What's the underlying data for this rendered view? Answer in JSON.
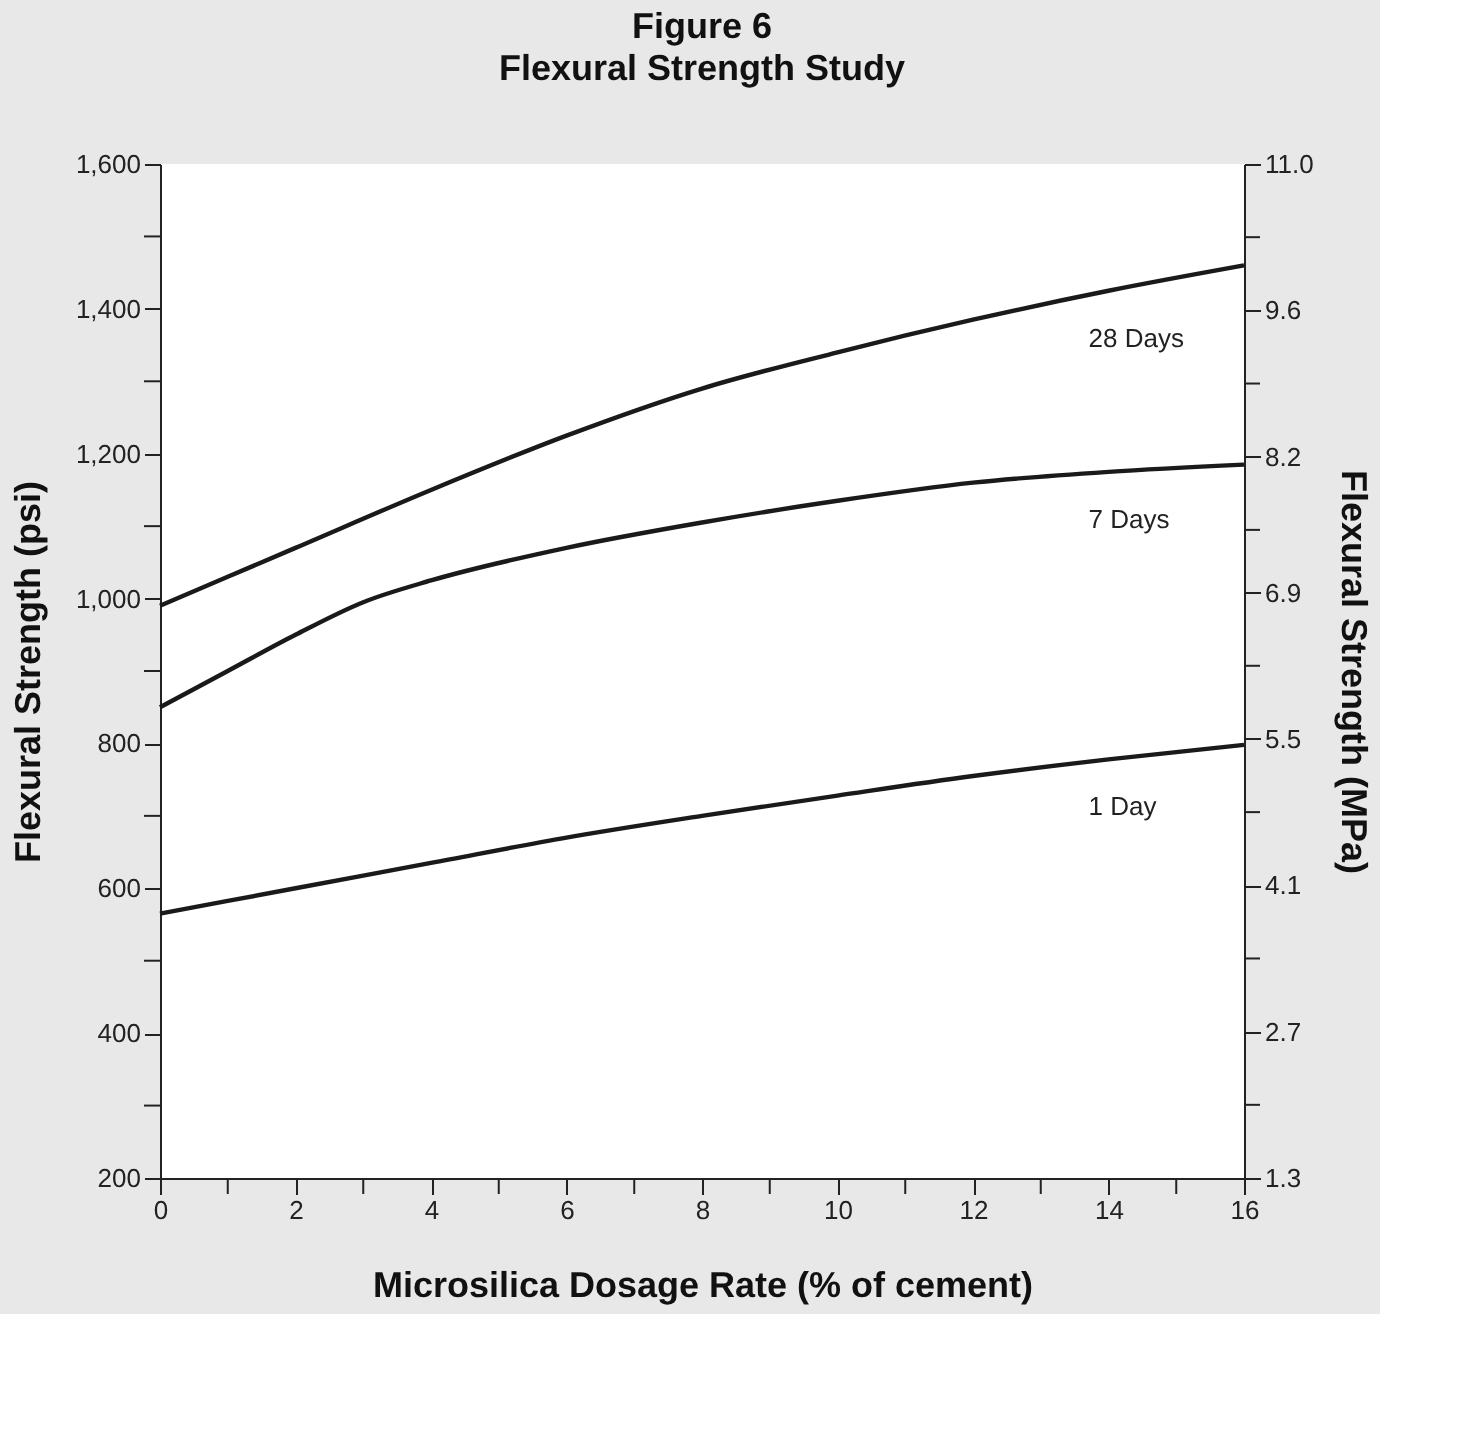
{
  "chart_data": {
    "type": "line",
    "title": "Figure 6",
    "subtitle": "Flexural Strength Study",
    "xlabel": "Microsilica Dosage Rate (% of cement)",
    "ylabel": "Flexural Strength (psi)",
    "y2label": "Flexural Strength (MPa)",
    "x": [
      0,
      2,
      4,
      6,
      8,
      10,
      12,
      14,
      16
    ],
    "series": [
      {
        "name": "28 Days",
        "color": "#1a1a1a",
        "values": [
          990,
          1070,
          1150,
          1225,
          1290,
          1340,
          1385,
          1425,
          1460
        ]
      },
      {
        "name": "7 Days",
        "color": "#1a1a1a",
        "x": [
          0,
          1,
          2,
          3,
          4,
          6,
          8,
          10,
          12,
          14,
          16
        ],
        "values": [
          850,
          900,
          950,
          995,
          1025,
          1070,
          1105,
          1135,
          1160,
          1175,
          1185
        ]
      },
      {
        "name": "1 Day",
        "color": "#1a1a1a",
        "values": [
          565,
          600,
          635,
          670,
          700,
          728,
          755,
          778,
          798
        ]
      }
    ],
    "xlim": [
      0,
      16
    ],
    "xticks": [
      0,
      {
        "value": 1,
        "label": null
      },
      2,
      {
        "value": 3,
        "label": null
      },
      4,
      {
        "value": 5,
        "label": null
      },
      6,
      {
        "value": 7,
        "label": null
      },
      8,
      {
        "value": 9,
        "label": null
      },
      10,
      {
        "value": 11,
        "label": null
      },
      12,
      {
        "value": 13,
        "label": null
      },
      14,
      {
        "value": 15,
        "label": null
      },
      16
    ],
    "ylim": [
      200,
      1600
    ],
    "yticks": [
      {
        "value": 200,
        "label": "200"
      },
      {
        "value": 300,
        "label": null
      },
      {
        "value": 400,
        "label": "400"
      },
      {
        "value": 500,
        "label": null
      },
      {
        "value": 600,
        "label": "600"
      },
      {
        "value": 700,
        "label": null
      },
      {
        "value": 800,
        "label": "800"
      },
      {
        "value": 900,
        "label": null
      },
      {
        "value": 1000,
        "label": "1,000"
      },
      {
        "value": 1100,
        "label": null
      },
      {
        "value": 1200,
        "label": "1,200"
      },
      {
        "value": 1300,
        "label": null
      },
      {
        "value": 1400,
        "label": "1,400"
      },
      {
        "value": 1500,
        "label": null
      },
      {
        "value": 1600,
        "label": "1,600"
      }
    ],
    "y2lim": [
      1.3,
      11.0
    ],
    "y2ticks": [
      1.3,
      {
        "value": 2.0,
        "label": null
      },
      2.7,
      {
        "value": 3.4,
        "label": null
      },
      4.1,
      {
        "value": 4.8,
        "label": null
      },
      5.5,
      {
        "value": 6.2,
        "label": null
      },
      6.9,
      {
        "value": 7.5,
        "label": null
      },
      8.2,
      {
        "value": 8.9,
        "label": null
      },
      9.6,
      {
        "value": 10.3,
        "label": null
      },
      {
        "value": 11,
        "label": "11.0"
      }
    ],
    "grid": false,
    "legend": false
  }
}
